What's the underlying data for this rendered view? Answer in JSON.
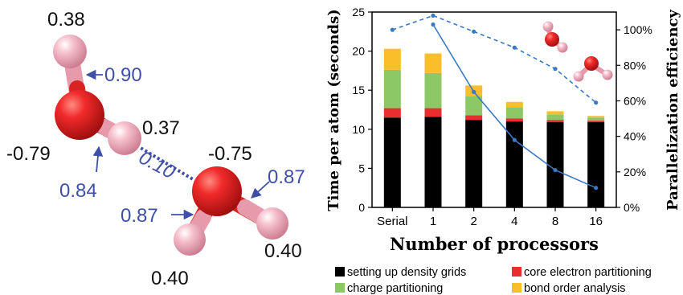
{
  "molecule": {
    "charges": {
      "h_top": "0.38",
      "o_left": "-0.79",
      "h_mid": "0.37",
      "o_right": "-0.75",
      "h_bottom_left": "0.40",
      "h_bottom_right": "0.40"
    },
    "bond_orders": {
      "oh_top": "0.90",
      "oh_mid": "0.84",
      "hbond": "0.10",
      "oh_right_upper": "0.87",
      "oh_right_left": "0.87"
    },
    "colors": {
      "oxygen": "#e8262a",
      "hydrogen": "#f3b3c3",
      "annotation": "#3f4fa8",
      "hbond": "#3f4fa8"
    }
  },
  "chart_data": {
    "type": "bar",
    "categories": [
      "Serial",
      "1",
      "2",
      "4",
      "8",
      "16"
    ],
    "xlabel": "Number of processors",
    "ylabel": "Time per atom (seconds)",
    "y2label": "Parallelization efficiency",
    "ylim": [
      0,
      25
    ],
    "yticks": [
      "0",
      "5",
      "10",
      "15",
      "20",
      "25"
    ],
    "y2lim": [
      0,
      110
    ],
    "y2ticks": [
      "0%",
      "20%",
      "40%",
      "60%",
      "80%",
      "100%"
    ],
    "stacked": true,
    "series": [
      {
        "name": "setting up density grids",
        "color": "#000000",
        "values": [
          11.5,
          11.6,
          11.2,
          11.0,
          10.9,
          10.9
        ]
      },
      {
        "name": "core electron partitioning",
        "color": "#e82e2e",
        "values": [
          1.2,
          1.1,
          0.6,
          0.4,
          0.3,
          0.2
        ]
      },
      {
        "name": "charge partitioning",
        "color": "#8cc966",
        "values": [
          4.9,
          4.5,
          2.4,
          1.4,
          0.7,
          0.4
        ]
      },
      {
        "name": "bond order analysis",
        "color": "#f9be2a",
        "values": [
          2.7,
          2.5,
          1.4,
          0.7,
          0.4,
          0.2
        ]
      }
    ],
    "efficiency_lines": [
      {
        "style": "solid",
        "color": "#3b78c4",
        "values": [
          null,
          103,
          65,
          38,
          21,
          11
        ]
      },
      {
        "style": "dashed",
        "color": "#3b78c4",
        "values": [
          100,
          108,
          99,
          90,
          78,
          59
        ]
      }
    ],
    "legend_position": "bottom"
  }
}
